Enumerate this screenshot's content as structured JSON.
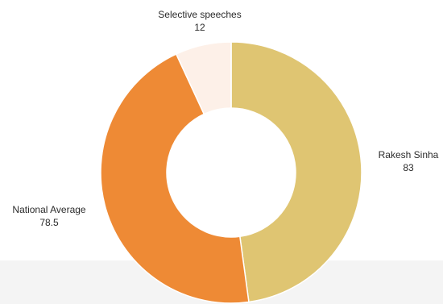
{
  "chart_data": {
    "type": "pie",
    "hole": "donut",
    "title": "",
    "slices": [
      {
        "label": "Rakesh Sinha",
        "value": 83,
        "color": "#dfc572"
      },
      {
        "label": "National Average",
        "value": 78.5,
        "color": "#ee8a35"
      },
      {
        "label": "Selective speeches",
        "value": 12,
        "color": "#fdf0e8"
      }
    ]
  }
}
